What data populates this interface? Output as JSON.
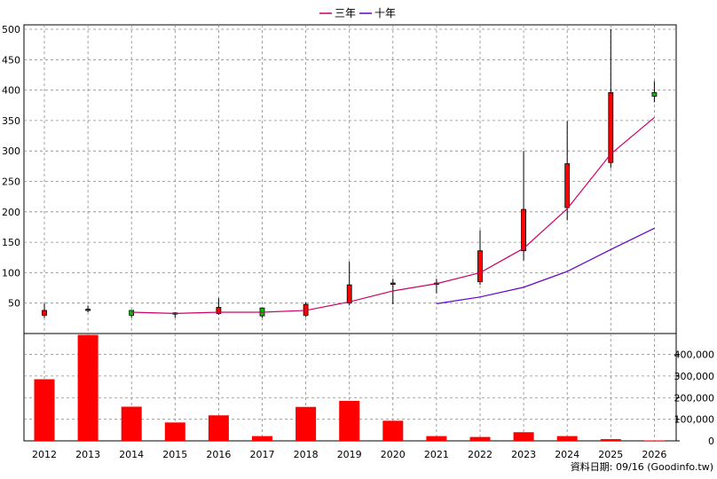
{
  "legend": {
    "items": [
      {
        "label": "三年",
        "color": "#cc0066"
      },
      {
        "label": "十年",
        "color": "#6600cc"
      }
    ]
  },
  "source_label": "資料日期: 09/16  (Goodinfo.tw)",
  "chart_data": [
    {
      "type": "candlestick",
      "title": "",
      "categories": [
        "2012",
        "2013",
        "2014",
        "2015",
        "2016",
        "2017",
        "2018",
        "2019",
        "2020",
        "2021",
        "2022",
        "2023",
        "2024",
        "2025",
        "2026"
      ],
      "ylim": [
        0,
        500
      ],
      "yticks": [
        50,
        100,
        150,
        200,
        250,
        300,
        350,
        400,
        450,
        500
      ],
      "candles": [
        {
          "x": "2012",
          "open": 38,
          "high": 50,
          "low": 26,
          "close": 30,
          "color": "#ff0000"
        },
        {
          "x": "2013",
          "open": 40,
          "high": 46,
          "low": 35,
          "close": 39,
          "color": "#ff0000"
        },
        {
          "x": "2014",
          "open": 30,
          "high": 38,
          "low": 26,
          "close": 38,
          "color": "#00c000"
        },
        {
          "x": "2015",
          "open": 34,
          "high": 35,
          "low": 26,
          "close": 33,
          "color": "#ff0000"
        },
        {
          "x": "2016",
          "open": 33,
          "high": 58,
          "low": 31,
          "close": 43,
          "color": "#ff0000"
        },
        {
          "x": "2017",
          "open": 29,
          "high": 41,
          "low": 26,
          "close": 42,
          "color": "#00c000"
        },
        {
          "x": "2018",
          "open": 48,
          "high": 51,
          "low": 27,
          "close": 30,
          "color": "#ff0000"
        },
        {
          "x": "2019",
          "open": 80,
          "high": 118,
          "low": 46,
          "close": 50,
          "color": "#ff0000"
        },
        {
          "x": "2020",
          "open": 83,
          "high": 90,
          "low": 48,
          "close": 82,
          "color": "#ff0000"
        },
        {
          "x": "2021",
          "open": 83,
          "high": 90,
          "low": 66,
          "close": 82,
          "color": "#ff0000"
        },
        {
          "x": "2022",
          "open": 136,
          "high": 170,
          "low": 80,
          "close": 85,
          "color": "#ff0000"
        },
        {
          "x": "2023",
          "open": 204,
          "high": 300,
          "low": 120,
          "close": 136,
          "color": "#ff0000"
        },
        {
          "x": "2024",
          "open": 279,
          "high": 349,
          "low": 186,
          "close": 207,
          "color": "#ff0000"
        },
        {
          "x": "2025",
          "open": 396,
          "high": 500,
          "low": 272,
          "close": 281,
          "color": "#ff0000"
        },
        {
          "x": "2026",
          "open": 396,
          "high": 415,
          "low": 380,
          "close": 390,
          "color": "#00c000"
        }
      ],
      "series": [
        {
          "name": "三年",
          "color": "#cc0066",
          "x": [
            "2014",
            "2015",
            "2016",
            "2017",
            "2018",
            "2019",
            "2020",
            "2021",
            "2022",
            "2023",
            "2024",
            "2025",
            "2026"
          ],
          "values": [
            35,
            33,
            35,
            35,
            38,
            52,
            70,
            82,
            100,
            140,
            205,
            295,
            355
          ]
        },
        {
          "name": "十年",
          "color": "#6600cc",
          "x": [
            "2021",
            "2022",
            "2023",
            "2024",
            "2025",
            "2026"
          ],
          "values": [
            49,
            60,
            76,
            102,
            138,
            173
          ]
        }
      ]
    },
    {
      "type": "bar",
      "title": "",
      "categories": [
        "2012",
        "2013",
        "2014",
        "2015",
        "2016",
        "2017",
        "2018",
        "2019",
        "2020",
        "2021",
        "2022",
        "2023",
        "2024",
        "2025",
        "2026"
      ],
      "values": [
        285000,
        490000,
        158000,
        85000,
        118000,
        22000,
        157000,
        185000,
        93000,
        22000,
        18000,
        40000,
        22000,
        8000,
        2000
      ],
      "ylim": [
        0,
        480000
      ],
      "yticks": [
        0,
        100000,
        200000,
        300000,
        400000
      ],
      "ytick_labels": [
        "0",
        "100,000",
        "200,000",
        "300,000",
        "400,000"
      ],
      "color": "#ff0000"
    }
  ]
}
